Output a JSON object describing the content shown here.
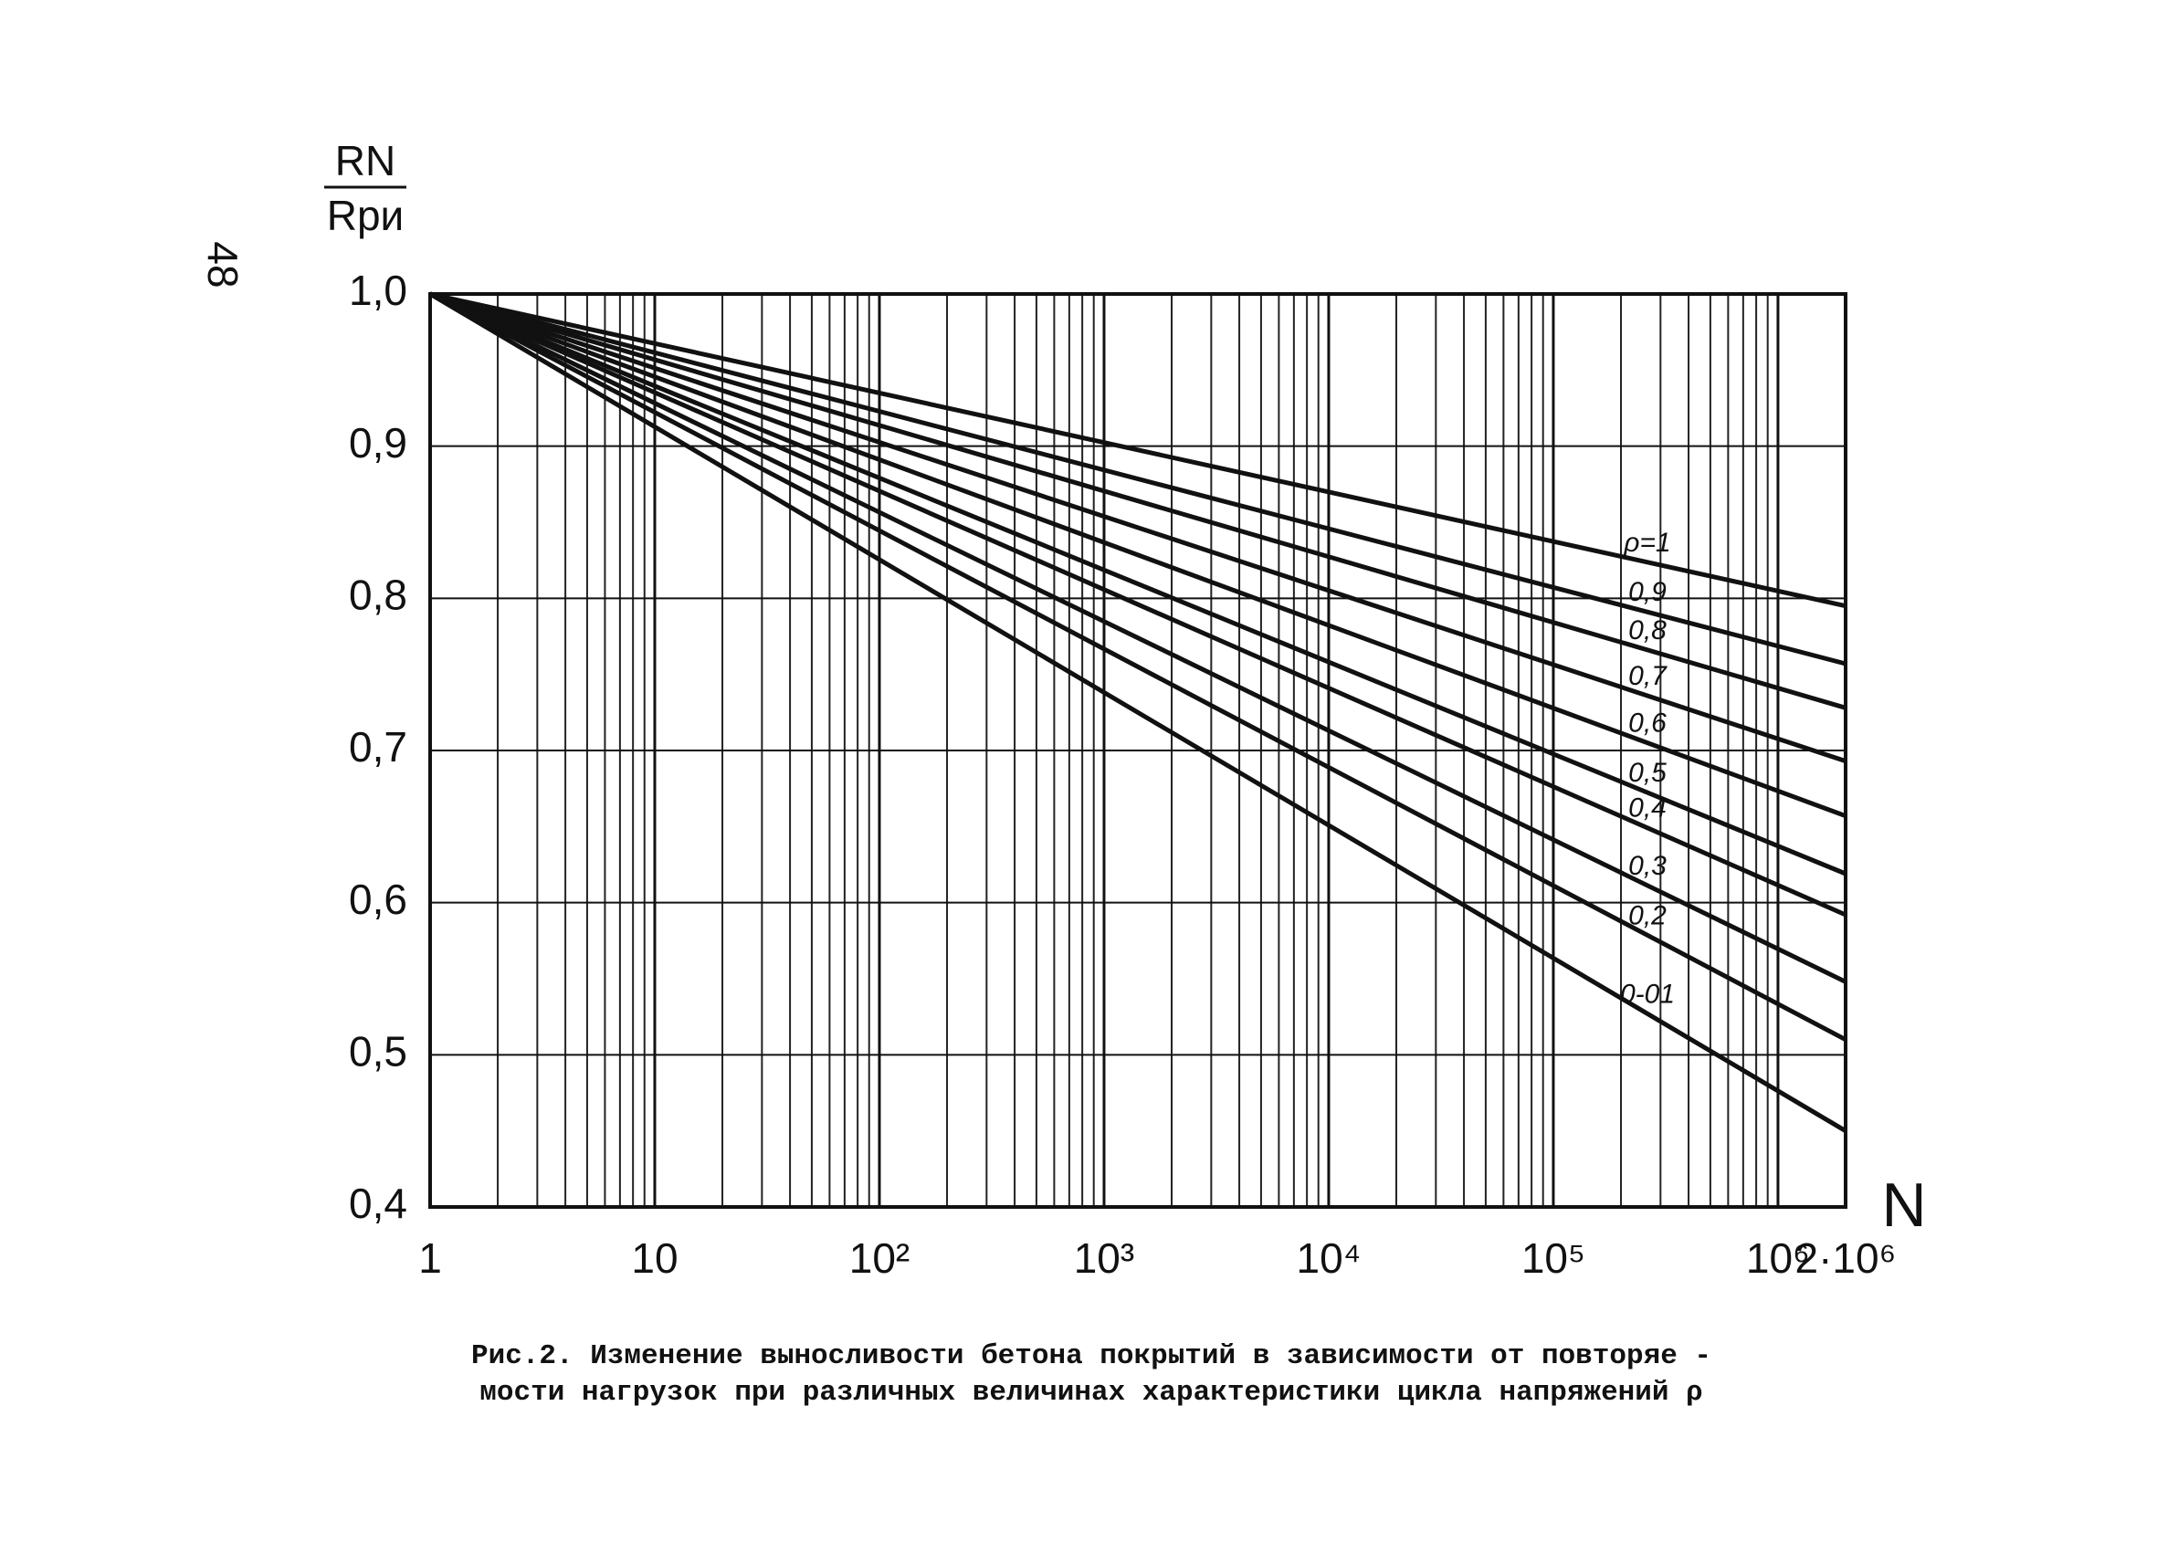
{
  "page_number": "48",
  "chart_data": {
    "type": "line",
    "caption": [
      "Рис.2. Изменение выносливости бетона покрытий в зависимости от повторяе -",
      "мости нагрузок при различных величинах характеристики цикла напряжений ρ"
    ],
    "ylabel": {
      "numerator": "RN",
      "denominator": "Rри"
    },
    "xlabel": "N",
    "log_x": true,
    "grid": true,
    "color": "#111111",
    "x": [
      1,
      2000000
    ],
    "xlim": [
      1,
      2000000
    ],
    "xticks": [
      1,
      10,
      {
        "value": 100,
        "label": "10²"
      },
      {
        "value": 1000,
        "label": "10³"
      },
      {
        "value": 10000,
        "label": "10⁴"
      },
      {
        "value": 100000,
        "label": "10⁵"
      },
      {
        "value": 1000000,
        "label": "10⁶"
      },
      {
        "value": 2000000,
        "label": "2·10⁶"
      }
    ],
    "ylim": [
      0.4,
      1.0
    ],
    "yticks": [
      {
        "value": 0.4,
        "label": "0,4"
      },
      {
        "value": 0.5,
        "label": "0,5"
      },
      {
        "value": 0.6,
        "label": "0,6"
      },
      {
        "value": 0.7,
        "label": "0,7"
      },
      {
        "value": 0.8,
        "label": "0,8"
      },
      {
        "value": 0.9,
        "label": "0,9"
      },
      {
        "value": 1.0,
        "label": "1,0"
      }
    ],
    "series": [
      {
        "name": "ρ=1",
        "values": [
          1.0,
          0.795
        ]
      },
      {
        "name": "0,9",
        "values": [
          1.0,
          0.757
        ]
      },
      {
        "name": "0,8",
        "values": [
          1.0,
          0.728
        ]
      },
      {
        "name": "0,7",
        "values": [
          1.0,
          0.693
        ]
      },
      {
        "name": "0,6",
        "values": [
          1.0,
          0.657
        ]
      },
      {
        "name": "0,5",
        "values": [
          1.0,
          0.619
        ]
      },
      {
        "name": "0,4",
        "values": [
          1.0,
          0.592
        ]
      },
      {
        "name": "0,3",
        "values": [
          1.0,
          0.548
        ]
      },
      {
        "name": "0,2",
        "values": [
          1.0,
          0.51
        ]
      },
      {
        "name": "0-01",
        "values": [
          1.0,
          0.45
        ]
      }
    ]
  }
}
